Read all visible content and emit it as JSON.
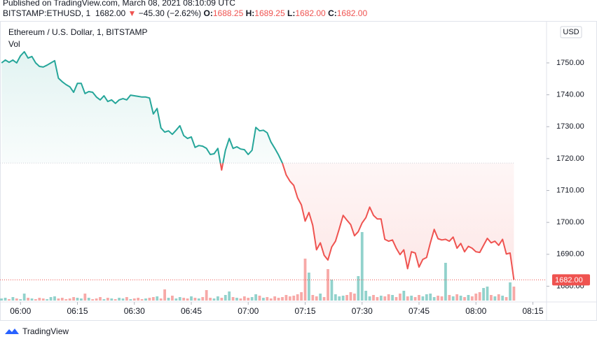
{
  "header": {
    "published": "Published on TradingView.com, March 08, 2021 08:10:09 UTC",
    "symbol": "BITSTAMP:ETHUSD, 1",
    "last": "1682.00",
    "arrow": "▼",
    "change": "−45.30 (−2.62%)",
    "o_label": "O:",
    "o": "1688.25",
    "h_label": "H:",
    "h": "1689.25",
    "l_label": "L:",
    "l": "1682.00",
    "c_label": "C:",
    "c": "1682.00"
  },
  "footer": {
    "brand": "TradingView"
  },
  "chart_data": {
    "type": "baseline",
    "title": "Ethereum / U.S. Dollar, 1, BITSTAMP",
    "currency": "USD",
    "up_color": "#26a69a",
    "down_color": "#ef5350",
    "baseline": 1718.6,
    "last_label": "1682.00",
    "x": [
      355,
      356,
      357,
      358,
      359,
      360,
      361,
      362,
      363,
      364,
      365,
      366,
      367,
      368,
      369,
      370,
      371,
      372,
      373,
      374,
      375,
      376,
      377,
      378,
      379,
      380,
      381,
      382,
      383,
      384,
      385,
      386,
      387,
      388,
      389,
      390,
      391,
      392,
      393,
      394,
      395,
      396,
      397,
      398,
      399,
      400,
      401,
      402,
      403,
      404,
      405,
      406,
      407,
      408,
      409,
      410,
      411,
      412,
      413,
      414,
      415,
      416,
      417,
      418,
      419,
      420,
      421,
      422,
      423,
      424,
      425,
      426,
      427,
      428,
      429,
      430,
      431,
      432,
      433,
      434,
      435,
      436,
      437,
      438,
      439,
      440,
      441,
      442,
      443,
      444,
      445,
      446,
      447,
      448,
      449,
      450,
      451,
      452,
      453,
      454,
      455,
      456,
      457,
      458,
      459,
      460,
      461,
      462,
      463,
      464,
      465,
      466,
      467,
      468,
      469,
      470,
      471,
      472,
      473,
      474,
      475,
      476,
      477,
      478,
      479,
      480,
      481,
      482,
      483,
      484,
      485,
      486,
      487,
      488,
      489,
      490
    ],
    "values": [
      1750.0,
      1750.9,
      1750.2,
      1750.9,
      1750.0,
      1752.2,
      1753.5,
      1751.5,
      1752.0,
      1750.0,
      1748.9,
      1748.7,
      1749.3,
      1750.0,
      1750.7,
      1745.2,
      1744.1,
      1743.2,
      1742.5,
      1740.8,
      1743.6,
      1743.6,
      1740.4,
      1741.0,
      1740.8,
      1739.3,
      1738.4,
      1739.7,
      1737.9,
      1738.4,
      1737.3,
      1738.4,
      1738.8,
      1738.4,
      1739.9,
      1739.7,
      1739.5,
      1739.3,
      1739.3,
      1739.0,
      1734.0,
      1735.7,
      1729.6,
      1728.3,
      1728.7,
      1727.6,
      1728.9,
      1730.3,
      1727.2,
      1726.3,
      1726.8,
      1723.5,
      1724.1,
      1723.9,
      1723.2,
      1721.3,
      1721.5,
      1723.2,
      1716.4,
      1722.6,
      1726.3,
      1723.2,
      1723.7,
      1723.0,
      1722.8,
      1721.3,
      1722.6,
      1729.8,
      1728.7,
      1728.9,
      1728.1,
      1725.2,
      1723.2,
      1721.1,
      1718.6,
      1714.9,
      1712.9,
      1711.6,
      1707.7,
      1705.5,
      1700.4,
      1703.1,
      1699.1,
      1691.4,
      1693.6,
      1689.7,
      1688.2,
      1692.3,
      1694.1,
      1698.0,
      1702.2,
      1700.7,
      1699.3,
      1695.8,
      1697.1,
      1699.8,
      1701.5,
      1704.8,
      1702.2,
      1701.1,
      1701.1,
      1694.7,
      1694.1,
      1694.5,
      1691.9,
      1689.9,
      1691.4,
      1685.5,
      1690.8,
      1690.4,
      1686.0,
      1688.4,
      1689.0,
      1693.6,
      1697.8,
      1694.9,
      1694.5,
      1694.7,
      1694.1,
      1695.4,
      1691.9,
      1693.4,
      1690.8,
      1692.5,
      1691.9,
      1690.8,
      1690.6,
      1692.8,
      1695.0,
      1693.6,
      1694.1,
      1692.8,
      1694.7,
      1690.1,
      1690.4,
      1682.0
    ],
    "volume": {
      "name": "Vol",
      "values": [
        3,
        4,
        2,
        5,
        3,
        2,
        10,
        4,
        3,
        2,
        4,
        3,
        2,
        5,
        6,
        3,
        4,
        2,
        3,
        5,
        4,
        3,
        10,
        4,
        2,
        3,
        5,
        2,
        4,
        3,
        2,
        4,
        3,
        5,
        2,
        3,
        4,
        2,
        3,
        4,
        5,
        6,
        3,
        16,
        4,
        7,
        3,
        5,
        4,
        3,
        6,
        4,
        3,
        5,
        15,
        4,
        3,
        6,
        4,
        8,
        13,
        5,
        4,
        3,
        6,
        4,
        5,
        9,
        7,
        4,
        5,
        3,
        6,
        4,
        5,
        8,
        6,
        7,
        9,
        12,
        60,
        40,
        8,
        6,
        10,
        5,
        45,
        30,
        9,
        6,
        7,
        8,
        12,
        10,
        35,
        98,
        14,
        6,
        8,
        5,
        7,
        6,
        9,
        8,
        5,
        10,
        14,
        6,
        7,
        5,
        8,
        6,
        9,
        10,
        5,
        7,
        6,
        54,
        8,
        6,
        9,
        7,
        5,
        8,
        6,
        10,
        12,
        18,
        20,
        8,
        6,
        9,
        7,
        5,
        26,
        20
      ]
    },
    "xlim": [
      354.6,
      498.6
    ],
    "ylim": [
      1675.5,
      1762.7
    ],
    "xticks": [
      {
        "value": 360,
        "label": "06:00"
      },
      {
        "value": 375,
        "label": "06:15"
      },
      {
        "value": 390,
        "label": "06:30"
      },
      {
        "value": 405,
        "label": "06:45"
      },
      {
        "value": 420,
        "label": "07:00"
      },
      {
        "value": 435,
        "label": "07:15"
      },
      {
        "value": 450,
        "label": "07:30"
      },
      {
        "value": 465,
        "label": "07:45"
      },
      {
        "value": 480,
        "label": "08:00"
      },
      {
        "value": 495,
        "label": "08:15"
      }
    ],
    "yticks": [
      {
        "value": 1680,
        "label": "1680.00"
      },
      {
        "value": 1690,
        "label": "1690.00"
      },
      {
        "value": 1700,
        "label": "1700.00"
      },
      {
        "value": 1710,
        "label": "1710.00"
      },
      {
        "value": 1720,
        "label": "1720.00"
      },
      {
        "value": 1730,
        "label": "1730.00"
      },
      {
        "value": 1740,
        "label": "1740.00"
      },
      {
        "value": 1750,
        "label": "1750.00"
      }
    ]
  }
}
